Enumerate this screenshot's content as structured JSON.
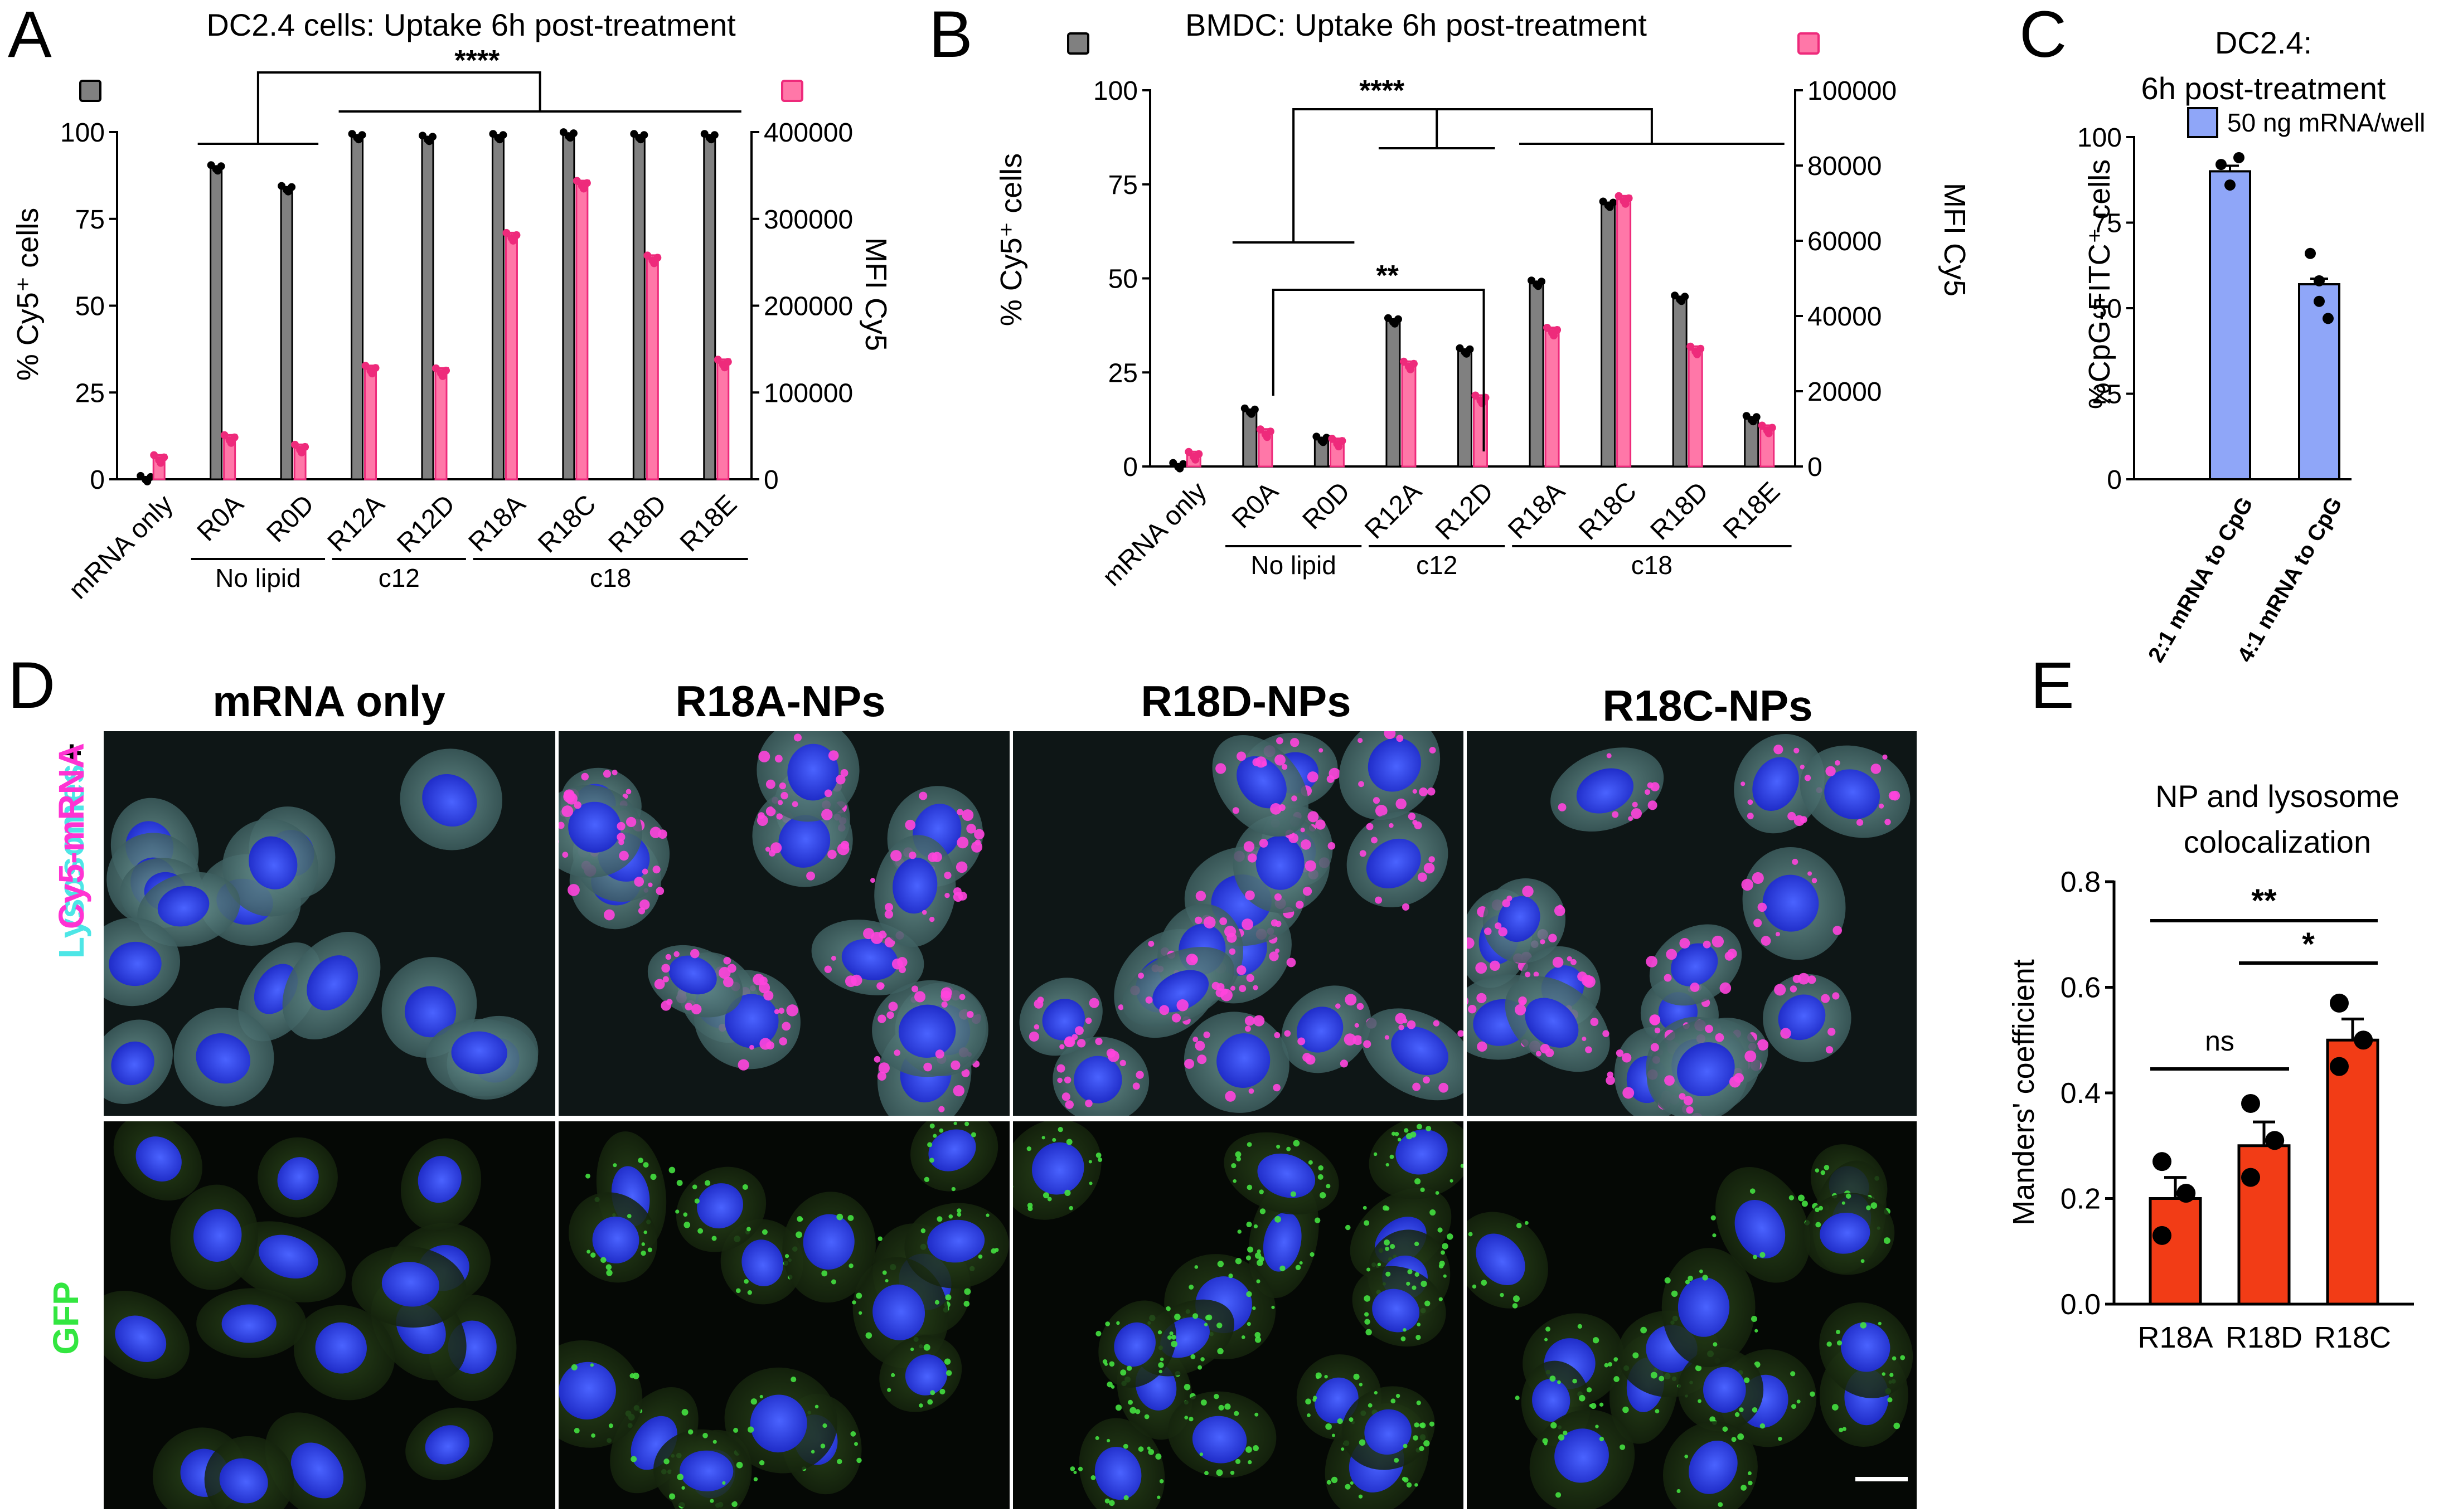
{
  "colors": {
    "gray_bar": "#808080",
    "pink_bar": "#ff77a8",
    "pink_point": "#ee2a7b",
    "blue_bar": "#8fa6f8",
    "red_bar": "#f23c16",
    "cyan_text": "#4de6e6",
    "magenta_text": "#ff33d2",
    "green_text": "#33e640"
  },
  "chart_data": [
    {
      "panel": "A",
      "type": "bar",
      "title": "DC2.4 cells: Uptake 6h post-treatment",
      "ylabel": "% Cy5⁺ cells",
      "y2label": "MFI Cy5",
      "ylim": [
        0,
        100
      ],
      "y2lim": [
        0,
        400000
      ],
      "yticks": [
        "0",
        "25",
        "50",
        "75",
        "100"
      ],
      "y2ticks": [
        "0",
        "100000",
        "200000",
        "300000",
        "400000"
      ],
      "categories": [
        "mRNA only",
        "R0A",
        "R0D",
        "R12A",
        "R12D",
        "R18A",
        "R18C",
        "R18D",
        "R18E"
      ],
      "series": [
        {
          "axis": "left",
          "values": [
            0.5,
            90,
            84,
            99,
            98.5,
            99,
            99.5,
            99,
            99
          ]
        },
        {
          "axis": "right",
          "values": [
            24000,
            47000,
            36000,
            127000,
            124000,
            280000,
            340000,
            254000,
            134000
          ]
        }
      ],
      "groups": [
        {
          "label": "No lipid",
          "from": 1,
          "to": 2
        },
        {
          "label": "c12",
          "from": 3,
          "to": 4
        },
        {
          "label": "c18",
          "from": 5,
          "to": 8
        }
      ],
      "significance": "****"
    },
    {
      "panel": "B",
      "type": "bar",
      "title": "BMDC: Uptake 6h post-treatment",
      "ylabel": "% Cy5⁺ cells",
      "y2label": "MFI Cy5",
      "ylim": [
        0,
        100
      ],
      "y2lim": [
        0,
        100000
      ],
      "yticks": [
        "0",
        "25",
        "50",
        "75",
        "100"
      ],
      "y2ticks": [
        "0",
        "20000",
        "40000",
        "60000",
        "80000",
        "100000"
      ],
      "categories": [
        "mRNA only",
        "R0A",
        "R0D",
        "R12A",
        "R12D",
        "R18A",
        "R18C",
        "R18D",
        "R18E"
      ],
      "series": [
        {
          "axis": "left",
          "values": [
            0.5,
            15,
            7.5,
            39,
            31,
            49,
            70,
            45,
            13
          ]
        },
        {
          "axis": "right",
          "values": [
            3000,
            9000,
            6500,
            27000,
            18000,
            36000,
            71000,
            31000,
            10000
          ]
        }
      ],
      "groups": [
        {
          "label": "No lipid",
          "from": 1,
          "to": 2
        },
        {
          "label": "c12",
          "from": 3,
          "to": 4
        },
        {
          "label": "c18",
          "from": 5,
          "to": 8
        }
      ],
      "significance": [
        "****",
        "**"
      ]
    },
    {
      "panel": "C",
      "type": "bar",
      "title": "DC2.4:",
      "subtitle": "6h post-treatment",
      "ylabel": "%CpG-FITC⁺ cells",
      "legend": "50 ng mRNA/well",
      "ylim": [
        0,
        100
      ],
      "yticks": [
        "0",
        "25",
        "50",
        "75",
        "100"
      ],
      "categories": [
        "2:1 mRNA to CpG",
        "4:1 mRNA to CpG"
      ],
      "values": [
        90,
        57
      ]
    },
    {
      "panel": "E",
      "type": "bar",
      "title": "NP and lysosome",
      "subtitle": "colocalization",
      "ylabel": "Manders' coefficient",
      "ylim": [
        0,
        0.8
      ],
      "yticks": [
        "0.0",
        "0.2",
        "0.4",
        "0.6",
        "0.8"
      ],
      "categories": [
        "R18A",
        "R18D",
        "R18C"
      ],
      "values": [
        0.2,
        0.3,
        0.5
      ],
      "points": [
        [
          0.27,
          0.21,
          0.13
        ],
        [
          0.38,
          0.31,
          0.24
        ],
        [
          0.57,
          0.5,
          0.45
        ]
      ],
      "significance": [
        "ns",
        "**",
        "*"
      ]
    }
  ],
  "panel_letters": [
    "A",
    "B",
    "C",
    "D",
    "E"
  ],
  "microscopy": {
    "columns": [
      "mRNA only",
      "R18A-NPs",
      "R18D-NPs",
      "R18C-NPs"
    ],
    "row1_label_a": "Lysosomes",
    "row1_label_plus": "+",
    "row1_label_b": "Cy5-mRNA",
    "row2_label": "GFP"
  }
}
